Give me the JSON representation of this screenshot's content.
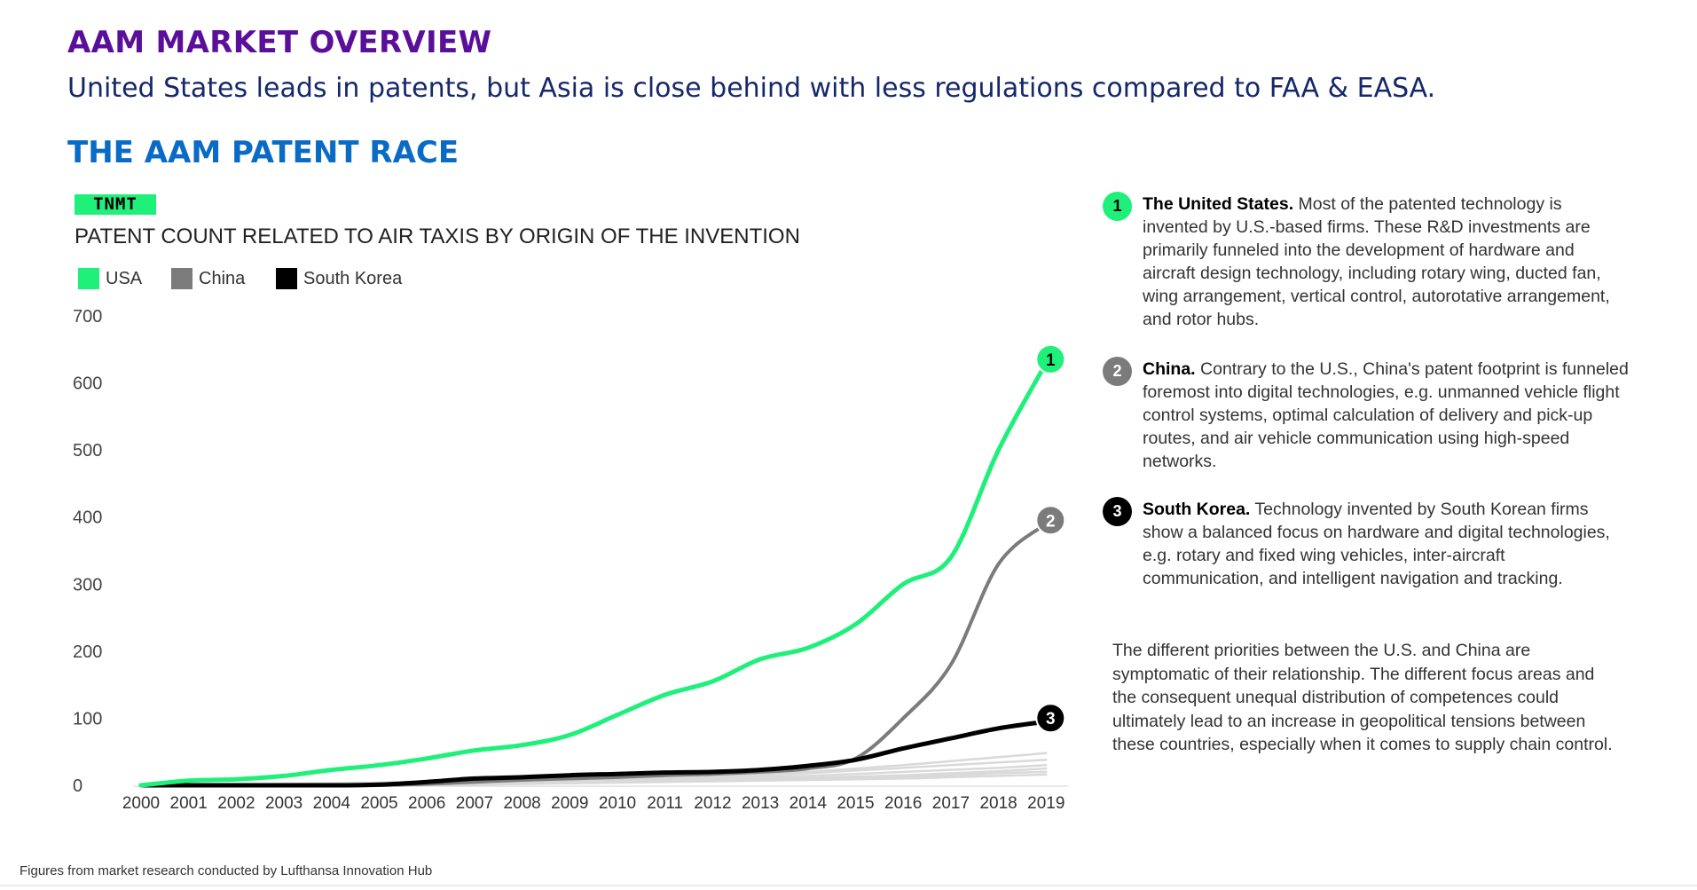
{
  "header": {
    "title": "AAM MARKET OVERVIEW",
    "subtitle": "United States leads in patents, but Asia is close behind with less regulations compared to FAA & EASA.",
    "section_title": "THE AAM PATENT RACE"
  },
  "source_logo": "TNMT",
  "colors": {
    "usa": "#1ef07a",
    "china": "#7b7b7b",
    "south_korea": "#000000",
    "other": "#d9d9d9",
    "title_purple": "#5a0f9a",
    "section_blue": "#0a6bc4"
  },
  "chart_data": {
    "type": "line",
    "title": "PATENT COUNT RELATED TO AIR TAXIS BY ORIGIN OF THE INVENTION",
    "x": [
      "2000",
      "2001",
      "2002",
      "2003",
      "2004",
      "2005",
      "2006",
      "2007",
      "2008",
      "2009",
      "2010",
      "2011",
      "2012",
      "2013",
      "2014",
      "2015",
      "2016",
      "2017",
      "2018",
      "2019"
    ],
    "ylim": [
      0,
      700
    ],
    "yticks": [
      0,
      100,
      200,
      300,
      400,
      500,
      600,
      700
    ],
    "grid": false,
    "legend_position": "top-left",
    "series": [
      {
        "name": "USA",
        "color": "#1ef07a",
        "marker_label": "1",
        "values": [
          0,
          7,
          9,
          14,
          23,
          30,
          40,
          52,
          60,
          75,
          105,
          135,
          155,
          188,
          205,
          240,
          300,
          340,
          500,
          630
        ]
      },
      {
        "name": "China",
        "color": "#7b7b7b",
        "marker_label": "2",
        "values": [
          0,
          0,
          0,
          0,
          0,
          0,
          2,
          5,
          8,
          10,
          12,
          15,
          17,
          20,
          25,
          40,
          100,
          180,
          330,
          390
        ]
      },
      {
        "name": "South Korea",
        "color": "#000000",
        "marker_label": "3",
        "values": [
          0,
          0,
          0,
          0,
          0,
          1,
          5,
          10,
          12,
          15,
          17,
          19,
          20,
          23,
          29,
          38,
          55,
          70,
          85,
          95
        ]
      }
    ],
    "other_series_values": [
      [
        0,
        0,
        1,
        2,
        3,
        4,
        5,
        6,
        8,
        9,
        10,
        12,
        14,
        17,
        20,
        25,
        30,
        36,
        42,
        48
      ],
      [
        0,
        0,
        0,
        1,
        2,
        3,
        4,
        5,
        6,
        7,
        9,
        11,
        13,
        15,
        18,
        22,
        26,
        30,
        34,
        38
      ],
      [
        0,
        0,
        0,
        0,
        1,
        2,
        3,
        4,
        5,
        6,
        7,
        8,
        10,
        12,
        14,
        17,
        20,
        23,
        26,
        30
      ],
      [
        0,
        0,
        0,
        0,
        0,
        1,
        2,
        3,
        4,
        5,
        6,
        7,
        8,
        9,
        11,
        13,
        15,
        18,
        21,
        25
      ],
      [
        0,
        0,
        0,
        0,
        0,
        0,
        1,
        2,
        3,
        4,
        5,
        6,
        7,
        8,
        9,
        11,
        13,
        15,
        18,
        20
      ],
      [
        0,
        0,
        0,
        0,
        0,
        0,
        0,
        1,
        2,
        3,
        4,
        5,
        6,
        7,
        8,
        9,
        10,
        12,
        14,
        16
      ]
    ]
  },
  "notes": [
    {
      "marker": "1",
      "heading": "The United States.",
      "text": " Most of the patented technology is invented by U.S.-based firms. These R&D investments are primarily funneled into the development of hardware and aircraft design technology, including rotary wing, ducted fan, wing arrangement, vertical control, autorotative arrangement, and rotor hubs.",
      "color": "#1ef07a"
    },
    {
      "marker": "2",
      "heading": "China.",
      "text": " Contrary to the U.S., China's patent footprint is funneled foremost into digital technologies, e.g. unmanned vehicle flight control systems, optimal calculation of delivery and pick-up routes, and air vehicle communication using high-speed networks.",
      "color": "#7b7b7b"
    },
    {
      "marker": "3",
      "heading": "South Korea.",
      "text": " Technology invented by South Korean firms show a balanced focus on hardware and digital technologies, e.g. rotary and fixed wing vehicles, inter-aircraft communication, and intelligent navigation and tracking.",
      "color": "#000000"
    }
  ],
  "closing_text": "The different priorities between the U.S. and China are symptomatic of their relationship. The different focus areas and the consequent unequal distribution of competences could ultimately lead to an increase in geopolitical tensions between these countries, especially when it comes to supply chain control.",
  "footnote": "Figures from market research conducted by Lufthansa Innovation Hub"
}
